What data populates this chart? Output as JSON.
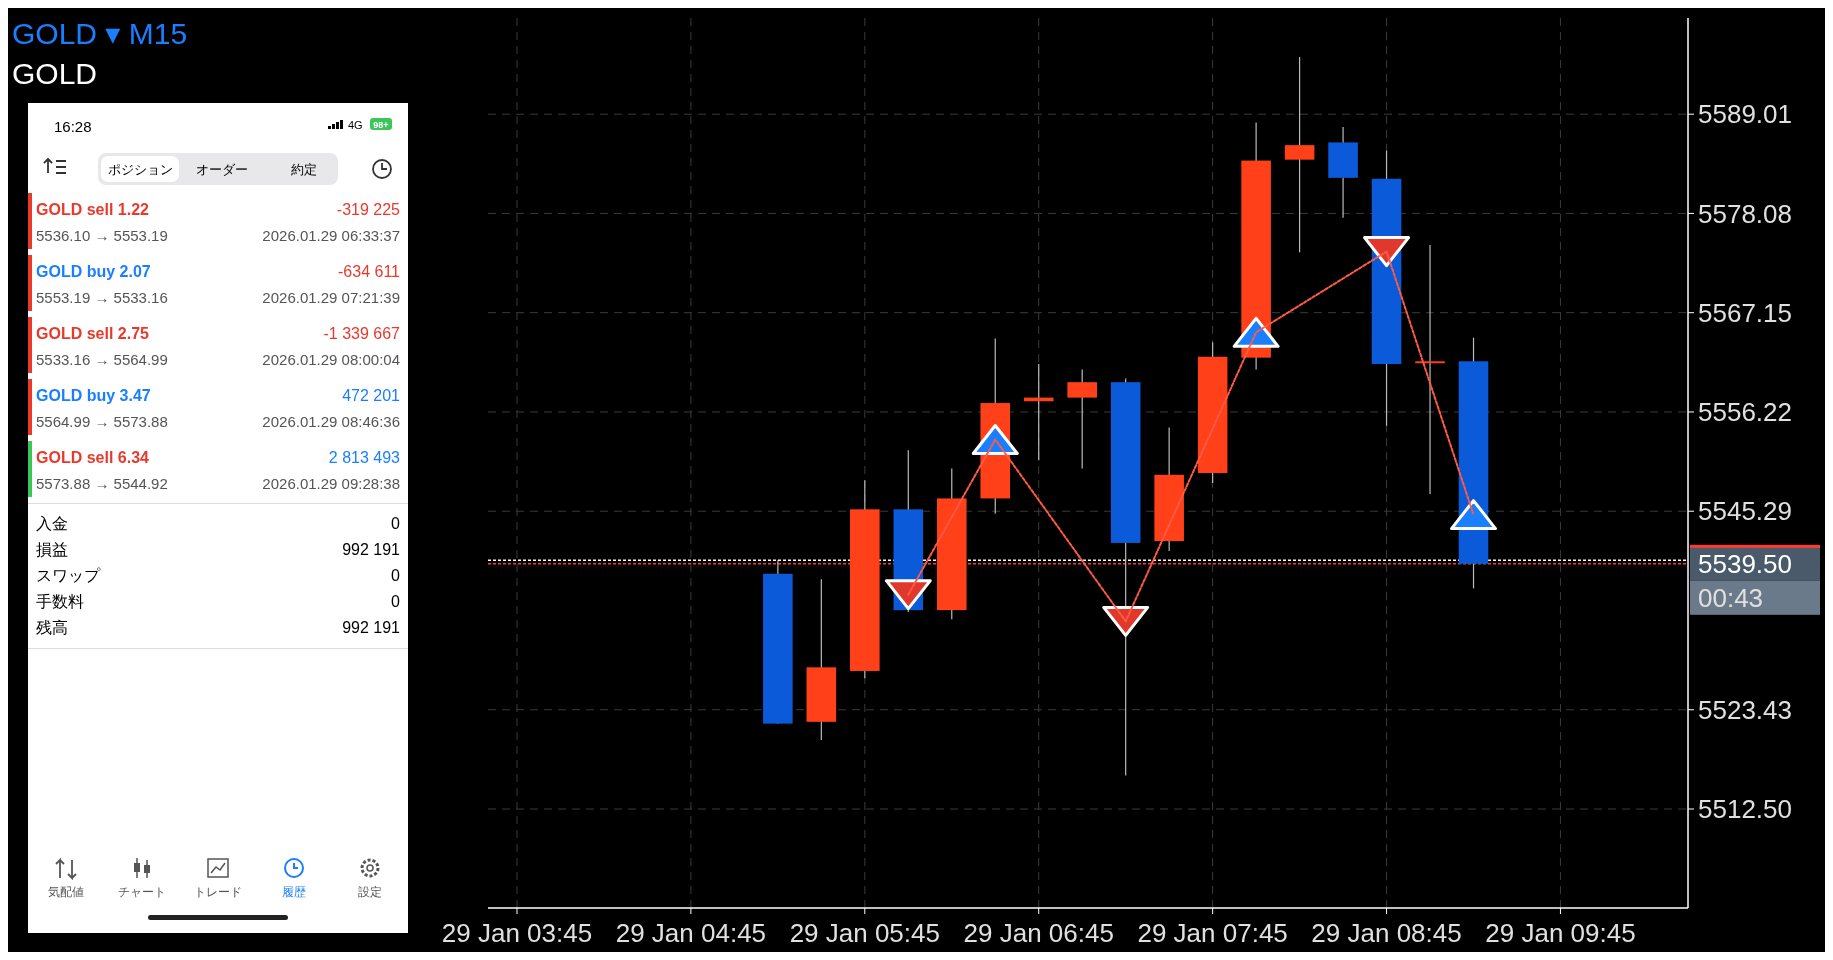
{
  "chart_data": {
    "type": "candlestick",
    "title": "GOLD ▾ M15",
    "subtitle": "GOLD",
    "x": [
      "2026-01-29T05:15",
      "2026-01-29T05:30",
      "2026-01-29T05:45",
      "2026-01-29T06:00",
      "2026-01-29T06:15",
      "2026-01-29T06:30",
      "2026-01-29T06:45",
      "2026-01-29T07:00",
      "2026-01-29T07:15",
      "2026-01-29T07:30",
      "2026-01-29T07:45",
      "2026-01-29T08:00",
      "2026-01-29T08:15",
      "2026-01-29T08:30",
      "2026-01-29T08:45",
      "2026-01-29T09:00",
      "2026-01-29T09:15"
    ],
    "ohlc": [
      [
        5538.4,
        5539.9,
        5521.9,
        5521.9
      ],
      [
        5522.1,
        5537.8,
        5520.1,
        5528.1
      ],
      [
        5527.7,
        5548.7,
        5526.9,
        5545.5
      ],
      [
        5545.5,
        5552.0,
        5534.2,
        5534.4
      ],
      [
        5534.4,
        5550.0,
        5533.4,
        5546.7
      ],
      [
        5546.7,
        5564.3,
        5545.0,
        5557.2
      ],
      [
        5557.4,
        5561.5,
        5550.9,
        5557.8
      ],
      [
        5557.8,
        5560.9,
        5550.0,
        5559.5
      ],
      [
        5559.5,
        5559.9,
        5516.2,
        5541.8
      ],
      [
        5542.0,
        5554.5,
        5540.9,
        5549.3
      ],
      [
        5549.5,
        5563.9,
        5548.4,
        5562.3
      ],
      [
        5562.2,
        5588.1,
        5560.9,
        5583.9
      ],
      [
        5584.0,
        5595.3,
        5573.8,
        5585.6
      ],
      [
        5585.9,
        5587.6,
        5577.6,
        5582.0
      ],
      [
        5581.9,
        5585.0,
        5554.7,
        5561.5
      ],
      [
        5561.7,
        5574.6,
        5547.2,
        5561.8
      ],
      [
        5561.8,
        5564.4,
        5536.8,
        5539.5
      ]
    ],
    "colors": [
      "#0a5ad9",
      "#ff4019",
      "#ff4019",
      "#0a5ad9",
      "#ff4019",
      "#ff4019",
      "#ff4019",
      "#ff4019",
      "#0a5ad9",
      "#ff4019",
      "#ff4019",
      "#ff4019",
      "#ff4019",
      "#0a5ad9",
      "#0a5ad9",
      "#ff4019",
      "#0a5ad9"
    ],
    "series": [
      {
        "type": "line",
        "color": "#ff5a45",
        "line_style": "dashed",
        "x": [
          "2026-01-29T06:00",
          "2026-01-29T06:30",
          "2026-01-29T07:15",
          "2026-01-29T08:00",
          "2026-01-29T08:45",
          "2026-01-29T09:15"
        ],
        "values": [
          5536.1,
          5553.19,
          5533.16,
          5564.99,
          5573.88,
          5544.92
        ]
      },
      {
        "type": "scatter",
        "color": "#e0392b",
        "marker": "triangle",
        "x": [
          "2026-01-29T06:00",
          "2026-01-29T07:15",
          "2026-01-29T08:45"
        ],
        "values": [
          5536.1,
          5533.16,
          5573.88
        ]
      },
      {
        "type": "scatter",
        "color": "#1a7fff",
        "marker": "triangle",
        "x": [
          "2026-01-29T06:30",
          "2026-01-29T08:00",
          "2026-01-29T09:15"
        ],
        "values": [
          5553.19,
          5564.99,
          5544.92
        ]
      }
    ],
    "xlim": [
      "2026-01-29T03:35",
      "2026-01-29T10:29"
    ],
    "xticks": [
      {
        "value": "2026-01-29T03:45",
        "label": "29 Jan 03:45"
      },
      {
        "value": "2026-01-29T04:45",
        "label": "29 Jan 04:45"
      },
      {
        "value": "2026-01-29T05:45",
        "label": "29 Jan 05:45"
      },
      {
        "value": "2026-01-29T06:45",
        "label": "29 Jan 06:45"
      },
      {
        "value": "2026-01-29T07:45",
        "label": "29 Jan 07:45"
      },
      {
        "value": "2026-01-29T08:45",
        "label": "29 Jan 08:45"
      },
      {
        "value": "2026-01-29T09:45",
        "label": "29 Jan 09:45"
      }
    ],
    "ylim": [
      5501.6,
      5599.6
    ],
    "yticks": [
      {
        "value": 5512.5,
        "label": "5512.50"
      },
      5523.43,
      5545.29,
      5556.22,
      5567.15,
      5578.08,
      5589.01
    ],
    "grid": true,
    "ref_lines": [
      {
        "axis": "y",
        "value": 5539.9,
        "label": null,
        "color": "#ffffff",
        "line_style": "dashed"
      },
      {
        "axis": "y",
        "value": 5539.5,
        "label": "5539.50",
        "color": "#ff3b30",
        "line_style": "dashed"
      }
    ],
    "annotations": [
      "16:28",
      "4G",
      "98+",
      "ポジション",
      "オーダー",
      "約定",
      "GOLD sell 1.22",
      "-319 225",
      "5536.10 → 5553.19",
      "2026.01.29 06:33:37",
      "GOLD buy 2.07",
      "-634 611",
      "5553.19 → 5533.16",
      "2026.01.29 07:21:39",
      "GOLD sell 2.75",
      "-1 339 667",
      "5533.16 → 5564.99",
      "2026.01.29 08:00:04",
      "GOLD buy 3.47",
      "472 201",
      "5564.99 → 5573.88",
      "2026.01.29 08:46:36",
      "GOLD sell 6.34",
      "2 813 493",
      "5573.88 → 5544.92",
      "2026.01.29 09:28:38",
      "入金",
      "0",
      "損益",
      "992 191",
      "スワップ",
      "0",
      "手数料",
      "0",
      "残高",
      "992 191",
      "気配値",
      "チャート",
      "トレード",
      "履歴",
      "設定",
      "00:43"
    ]
  }
}
